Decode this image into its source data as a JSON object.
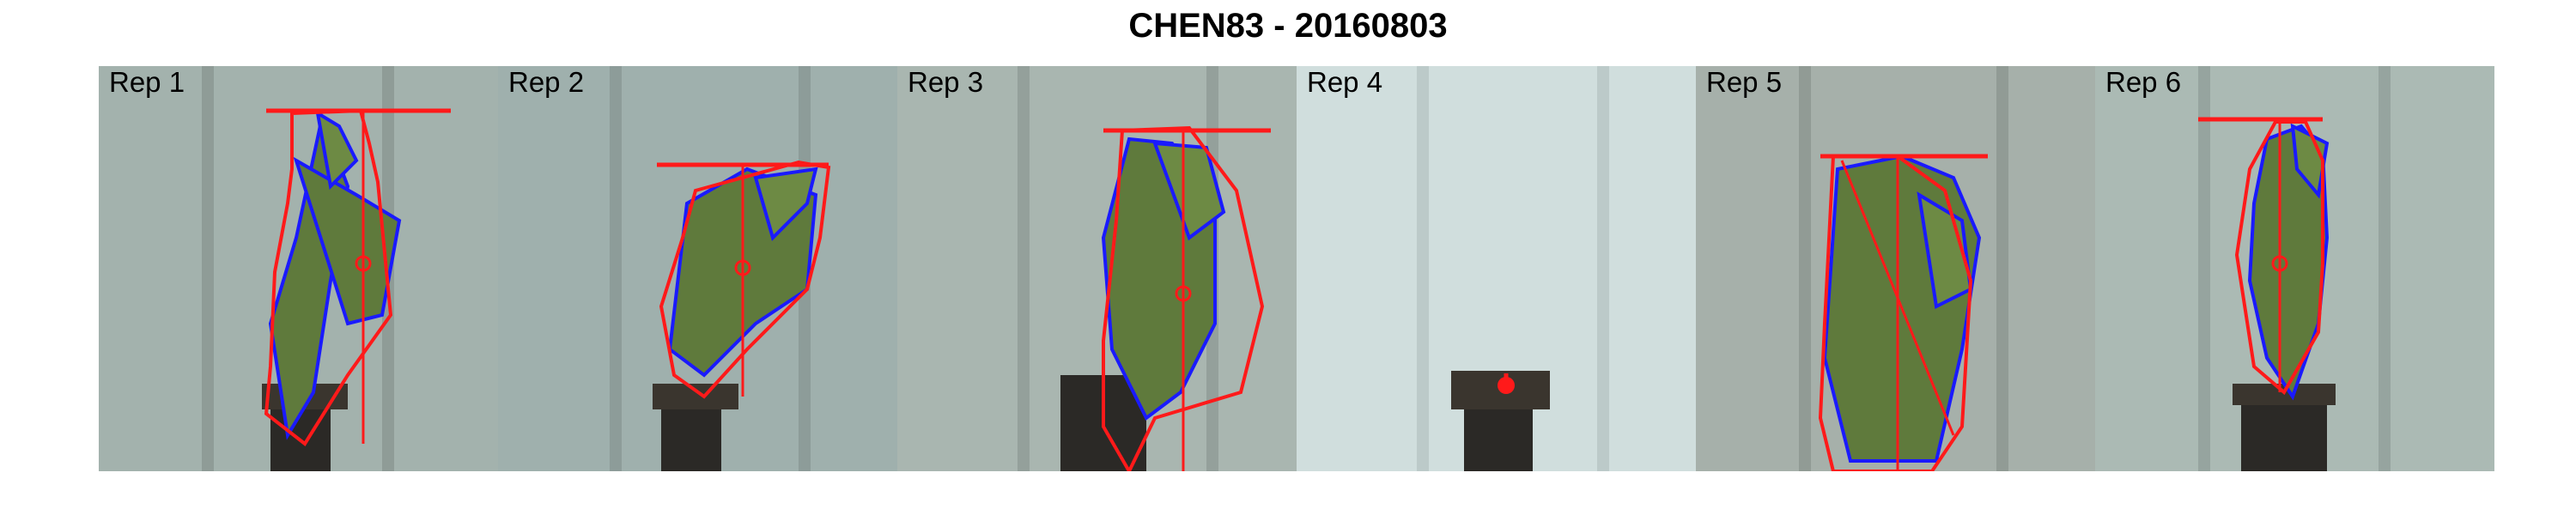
{
  "title": "CHEN83 - 20160803",
  "panels": [
    {
      "label": "Rep 1",
      "bg": "#a3b2ad"
    },
    {
      "label": "Rep 2",
      "bg": "#9fb0ad"
    },
    {
      "label": "Rep 3",
      "bg": "#a9b6b0"
    },
    {
      "label": "Rep 4",
      "bg": "#d0dedd"
    },
    {
      "label": "Rep 5",
      "bg": "#a6b0aa"
    },
    {
      "label": "Rep 6",
      "bg": "#abbab4"
    }
  ],
  "colors": {
    "hull": "#ff1a1a",
    "contour": "#1a1aff",
    "leaf": "#5f7a3c",
    "pot": "#2b2926"
  }
}
